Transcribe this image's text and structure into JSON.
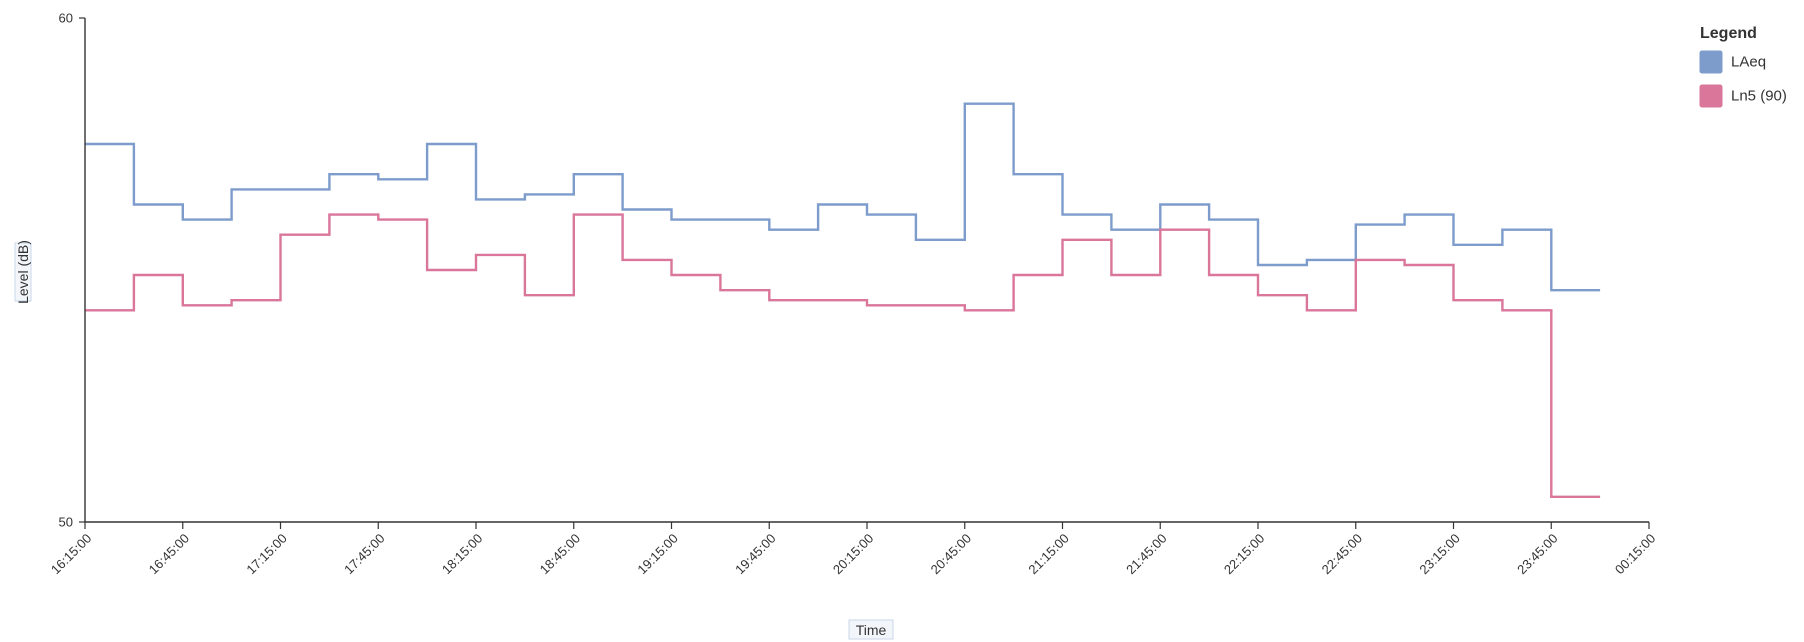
{
  "chart_data": {
    "type": "line",
    "step": true,
    "xlabel": "Time",
    "ylabel": "Level (dB)",
    "ylim": [
      50,
      60
    ],
    "yticks": [
      50,
      60
    ],
    "xlim": [
      "16:15:00",
      "00:15:00"
    ],
    "x_tick_labels": [
      "16:15:00",
      "16:45:00",
      "17:15:00",
      "17:45:00",
      "18:15:00",
      "18:45:00",
      "19:15:00",
      "19:45:00",
      "20:15:00",
      "20:45:00",
      "21:15:00",
      "21:45:00",
      "22:15:00",
      "22:45:00",
      "23:15:00",
      "23:45:00",
      "00:15:00"
    ],
    "x": [
      "16:15:00",
      "16:30:00",
      "16:45:00",
      "17:00:00",
      "17:15:00",
      "17:30:00",
      "17:45:00",
      "18:00:00",
      "18:15:00",
      "18:30:00",
      "18:45:00",
      "19:00:00",
      "19:15:00",
      "19:30:00",
      "19:45:00",
      "20:00:00",
      "20:15:00",
      "20:30:00",
      "20:45:00",
      "21:00:00",
      "21:15:00",
      "21:30:00",
      "21:45:00",
      "22:00:00",
      "22:15:00",
      "22:30:00",
      "22:45:00",
      "23:00:00",
      "23:15:00",
      "23:30:00",
      "23:45:00"
    ],
    "series_end": "00:00:00",
    "series": [
      {
        "name": "LAeq",
        "color": "#7d9ccc",
        "values": [
          57.5,
          56.3,
          56.0,
          56.6,
          56.6,
          56.9,
          56.8,
          57.5,
          56.4,
          56.5,
          56.9,
          56.2,
          56.0,
          56.0,
          55.8,
          56.3,
          56.1,
          55.6,
          58.3,
          56.9,
          56.1,
          55.8,
          56.3,
          56.0,
          55.1,
          55.2,
          55.9,
          56.1,
          55.5,
          55.8,
          54.6
        ]
      },
      {
        "name": "Ln5 (90)",
        "color": "#d9769a",
        "values": [
          54.2,
          54.9,
          54.3,
          54.4,
          55.7,
          56.1,
          56.0,
          55.0,
          55.3,
          54.5,
          56.1,
          55.2,
          54.9,
          54.6,
          54.4,
          54.4,
          54.3,
          54.3,
          54.2,
          54.9,
          55.6,
          54.9,
          55.8,
          54.9,
          54.5,
          54.2,
          55.2,
          55.1,
          54.4,
          54.2,
          50.5
        ]
      }
    ],
    "legend": {
      "title": "Legend",
      "position": "top-right"
    },
    "grid": false
  }
}
